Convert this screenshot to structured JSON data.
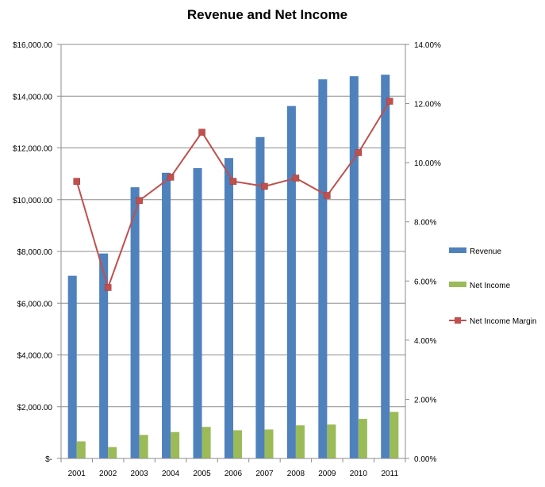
{
  "chart_data": {
    "type": "bar",
    "title": "Revenue and Net Income",
    "categories": [
      "2001",
      "2002",
      "2003",
      "2004",
      "2005",
      "2006",
      "2007",
      "2008",
      "2009",
      "2010",
      "2011"
    ],
    "series": [
      {
        "name": "Revenue",
        "axis": "left",
        "kind": "bar",
        "color": "#4F81BD",
        "values": [
          7060,
          7920,
          10480,
          11040,
          11220,
          11610,
          12420,
          13620,
          14650,
          14770,
          14830
        ]
      },
      {
        "name": "Net Income",
        "axis": "left",
        "kind": "bar",
        "color": "#9BBB59",
        "values": [
          660,
          440,
          910,
          1020,
          1220,
          1090,
          1120,
          1280,
          1310,
          1530,
          1800
        ]
      },
      {
        "name": "Net Income Margin",
        "axis": "right",
        "kind": "line",
        "color": "#C0504D",
        "values": [
          9.37,
          5.78,
          8.72,
          9.51,
          11.03,
          9.37,
          9.2,
          9.48,
          8.89,
          10.34,
          12.08
        ]
      }
    ],
    "y_left": {
      "min": 0,
      "max": 16000,
      "ticks": [
        "$-",
        "$2,000.00",
        "$4,000.00",
        "$6,000.00",
        "$8,000.00",
        "$10,000.00",
        "$12,000.00",
        "$14,000.00",
        "$16,000.00"
      ]
    },
    "y_right": {
      "min": 0,
      "max": 14,
      "ticks": [
        "0.00%",
        "2.00%",
        "4.00%",
        "6.00%",
        "8.00%",
        "10.00%",
        "12.00%",
        "14.00%"
      ]
    },
    "grid": true,
    "legend_position": "right"
  }
}
